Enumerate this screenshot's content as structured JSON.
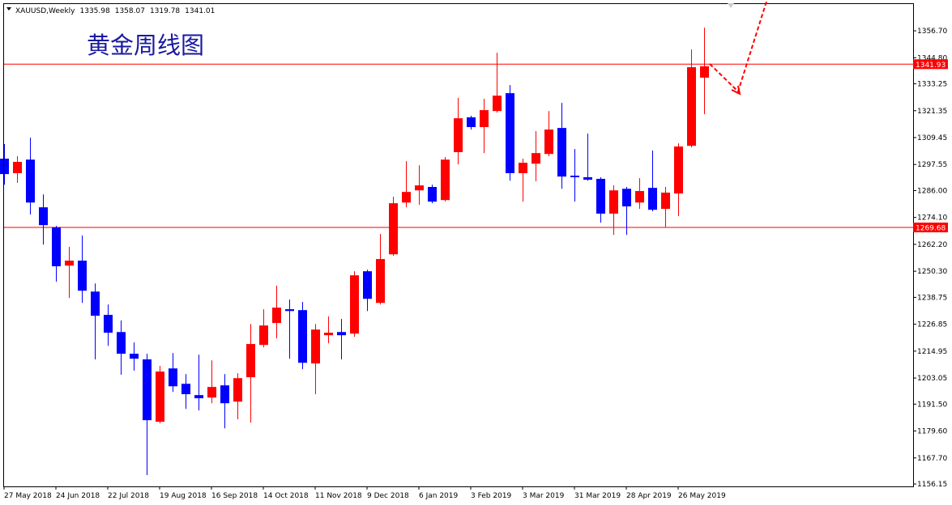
{
  "chart_data": {
    "type": "candlestick",
    "symbol": "XAUUSD,Weekly",
    "annotation": "黄金周线图",
    "up_color": "#ff0000",
    "down_color": "#0000ff",
    "categories": [
      "27 May 2018",
      null,
      null,
      null,
      "24 Jun 2018",
      null,
      null,
      null,
      "22 Jul 2018",
      null,
      null,
      null,
      "19 Aug 2018",
      null,
      null,
      null,
      "16 Sep 2018",
      null,
      null,
      null,
      "14 Oct 2018",
      null,
      null,
      null,
      "11 Nov 2018",
      null,
      null,
      null,
      "9 Dec 2018",
      null,
      null,
      null,
      "6 Jan 2019",
      null,
      null,
      null,
      "3 Feb 2019",
      null,
      null,
      null,
      "3 Mar 2019",
      null,
      null,
      null,
      "31 Mar 2019",
      null,
      null,
      null,
      "28 Apr 2019",
      null,
      null,
      null,
      "26 May 2019",
      null,
      null
    ],
    "open": [
      1300.1,
      1293.7,
      1299.7,
      1278.6,
      1269.7,
      1252.8,
      1255.0,
      1241.3,
      1231.0,
      1223.4,
      1213.8,
      1211.3,
      1183.7,
      1207.3,
      1200.5,
      1195.5,
      1194.4,
      1199.8,
      1192.6,
      1203.4,
      1217.7,
      1227.4,
      1233.5,
      1233.1,
      1209.5,
      1222.0,
      1223.4,
      1222.7,
      1250.3,
      1236.3,
      1257.8,
      1280.7,
      1286.1,
      1287.6,
      1281.8,
      1303.0,
      1318.4,
      1314.1,
      1321.2,
      1329.1,
      1293.7,
      1297.9,
      1302.2,
      1313.7,
      1292.6,
      1291.9,
      1291.2,
      1275.8,
      1286.8,
      1280.7,
      1287.2,
      1277.9,
      1284.7,
      1305.8,
      1335.98
    ],
    "high": [
      1306.6,
      1301.2,
      1309.4,
      1284.3,
      1270.4,
      1261.1,
      1266.1,
      1244.9,
      1235.6,
      1228.5,
      1218.8,
      1213.8,
      1208.4,
      1214.1,
      1204.8,
      1213.4,
      1210.9,
      1204.8,
      1205.2,
      1227.0,
      1233.5,
      1243.9,
      1237.8,
      1236.7,
      1227.0,
      1230.3,
      1229.2,
      1250.3,
      1251.0,
      1266.8,
      1283.3,
      1299.0,
      1297.2,
      1288.6,
      1300.8,
      1327.0,
      1319.1,
      1326.6,
      1347.0,
      1332.7,
      1300.1,
      1312.3,
      1321.2,
      1324.8,
      1304.4,
      1311.2,
      1291.9,
      1288.3,
      1287.6,
      1291.5,
      1303.7,
      1287.6,
      1306.9,
      1348.5,
      1358.07
    ],
    "low": [
      1288.6,
      1289.4,
      1275.4,
      1262.1,
      1245.7,
      1238.5,
      1236.3,
      1211.3,
      1217.3,
      1204.5,
      1206.3,
      1160.1,
      1183.0,
      1196.9,
      1189.4,
      1188.7,
      1191.9,
      1180.8,
      1184.8,
      1183.3,
      1216.6,
      1220.6,
      1211.6,
      1207.0,
      1195.9,
      1218.4,
      1211.3,
      1221.3,
      1232.7,
      1235.6,
      1257.1,
      1278.6,
      1279.7,
      1280.4,
      1281.1,
      1297.6,
      1313.0,
      1302.6,
      1320.5,
      1290.4,
      1281.1,
      1290.1,
      1301.2,
      1286.8,
      1281.1,
      1290.4,
      1271.8,
      1266.4,
      1266.4,
      1277.9,
      1276.8,
      1269.7,
      1274.7,
      1305.1,
      1319.78
    ],
    "close": [
      1293.3,
      1298.7,
      1280.7,
      1270.7,
      1252.5,
      1255.0,
      1241.7,
      1230.6,
      1223.1,
      1213.8,
      1211.6,
      1184.4,
      1205.9,
      1199.4,
      1195.9,
      1194.1,
      1199.1,
      1191.9,
      1203.0,
      1218.1,
      1226.3,
      1234.2,
      1232.7,
      1209.8,
      1224.5,
      1223.1,
      1222.0,
      1248.5,
      1238.1,
      1255.7,
      1280.4,
      1285.4,
      1288.3,
      1281.1,
      1299.7,
      1318.0,
      1314.1,
      1321.6,
      1328.0,
      1293.7,
      1298.3,
      1302.6,
      1313.0,
      1292.2,
      1291.9,
      1290.8,
      1275.8,
      1286.1,
      1279.0,
      1285.8,
      1277.5,
      1285.1,
      1305.5,
      1340.6,
      1341.01
    ],
    "hlines": [
      {
        "value": 1341.93,
        "color": "#ff0000"
      },
      {
        "value": 1269.68,
        "color": "#ff0000"
      }
    ],
    "ylim": [
      1155.1,
      1368.9
    ],
    "yticks": [
      {
        "value": 1356.7,
        "label": "1356.70"
      },
      {
        "value": 1344.8,
        "label": "1344.80"
      },
      1333.25,
      1321.35,
      1309.45,
      1297.55,
      {
        "value": 1286,
        "label": "1286.00"
      },
      {
        "value": 1274.1,
        "label": "1274.10"
      },
      {
        "value": 1262.2,
        "label": "1262.20"
      },
      {
        "value": 1250.3,
        "label": "1250.30"
      },
      1238.75,
      1226.85,
      1214.95,
      1203.05,
      {
        "value": 1191.5,
        "label": "1191.50"
      },
      {
        "value": 1179.6,
        "label": "1179.60"
      },
      {
        "value": 1167.7,
        "label": "1167.70"
      },
      1156.15
    ]
  }
}
